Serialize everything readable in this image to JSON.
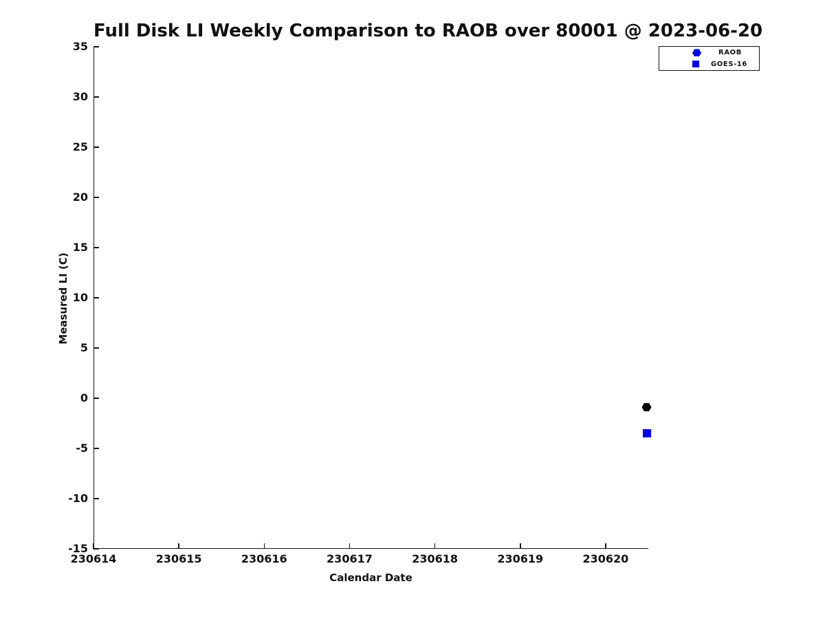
{
  "chart_data": {
    "type": "scatter",
    "title": "Full Disk LI Weekly Comparison to RAOB over 80001 @ 2023-06-20",
    "xlabel": "Calendar Date",
    "ylabel": "Measured LI (C)",
    "xlim": [
      230614,
      230620.5
    ],
    "ylim": [
      -15,
      35
    ],
    "xticks": [
      230614,
      230615,
      230616,
      230617,
      230618,
      230619,
      230620
    ],
    "yticks": [
      35,
      30,
      25,
      20,
      15,
      10,
      5,
      0,
      -5,
      -10,
      -15
    ],
    "grid": false,
    "background": "#ffffff",
    "legend": {
      "position": "top-right",
      "entries": [
        {
          "label": "RAOB",
          "marker": "hexagon",
          "color": "#0000EE"
        },
        {
          "label": "GOES-16",
          "marker": "square",
          "color": "#0000EE"
        }
      ]
    },
    "series": [
      {
        "name": "RAOB",
        "marker": "hexagon",
        "color": "#000000",
        "points": [
          {
            "x": 230620.48,
            "y": -0.9
          }
        ]
      },
      {
        "name": "GOES-16",
        "marker": "square",
        "color": "#0000EE",
        "points": [
          {
            "x": 230620.48,
            "y": -3.5
          }
        ]
      }
    ]
  },
  "colors": {
    "axis": "#111111",
    "text": "#111111",
    "blue": "#0000EE",
    "black_marker": "#000000"
  }
}
